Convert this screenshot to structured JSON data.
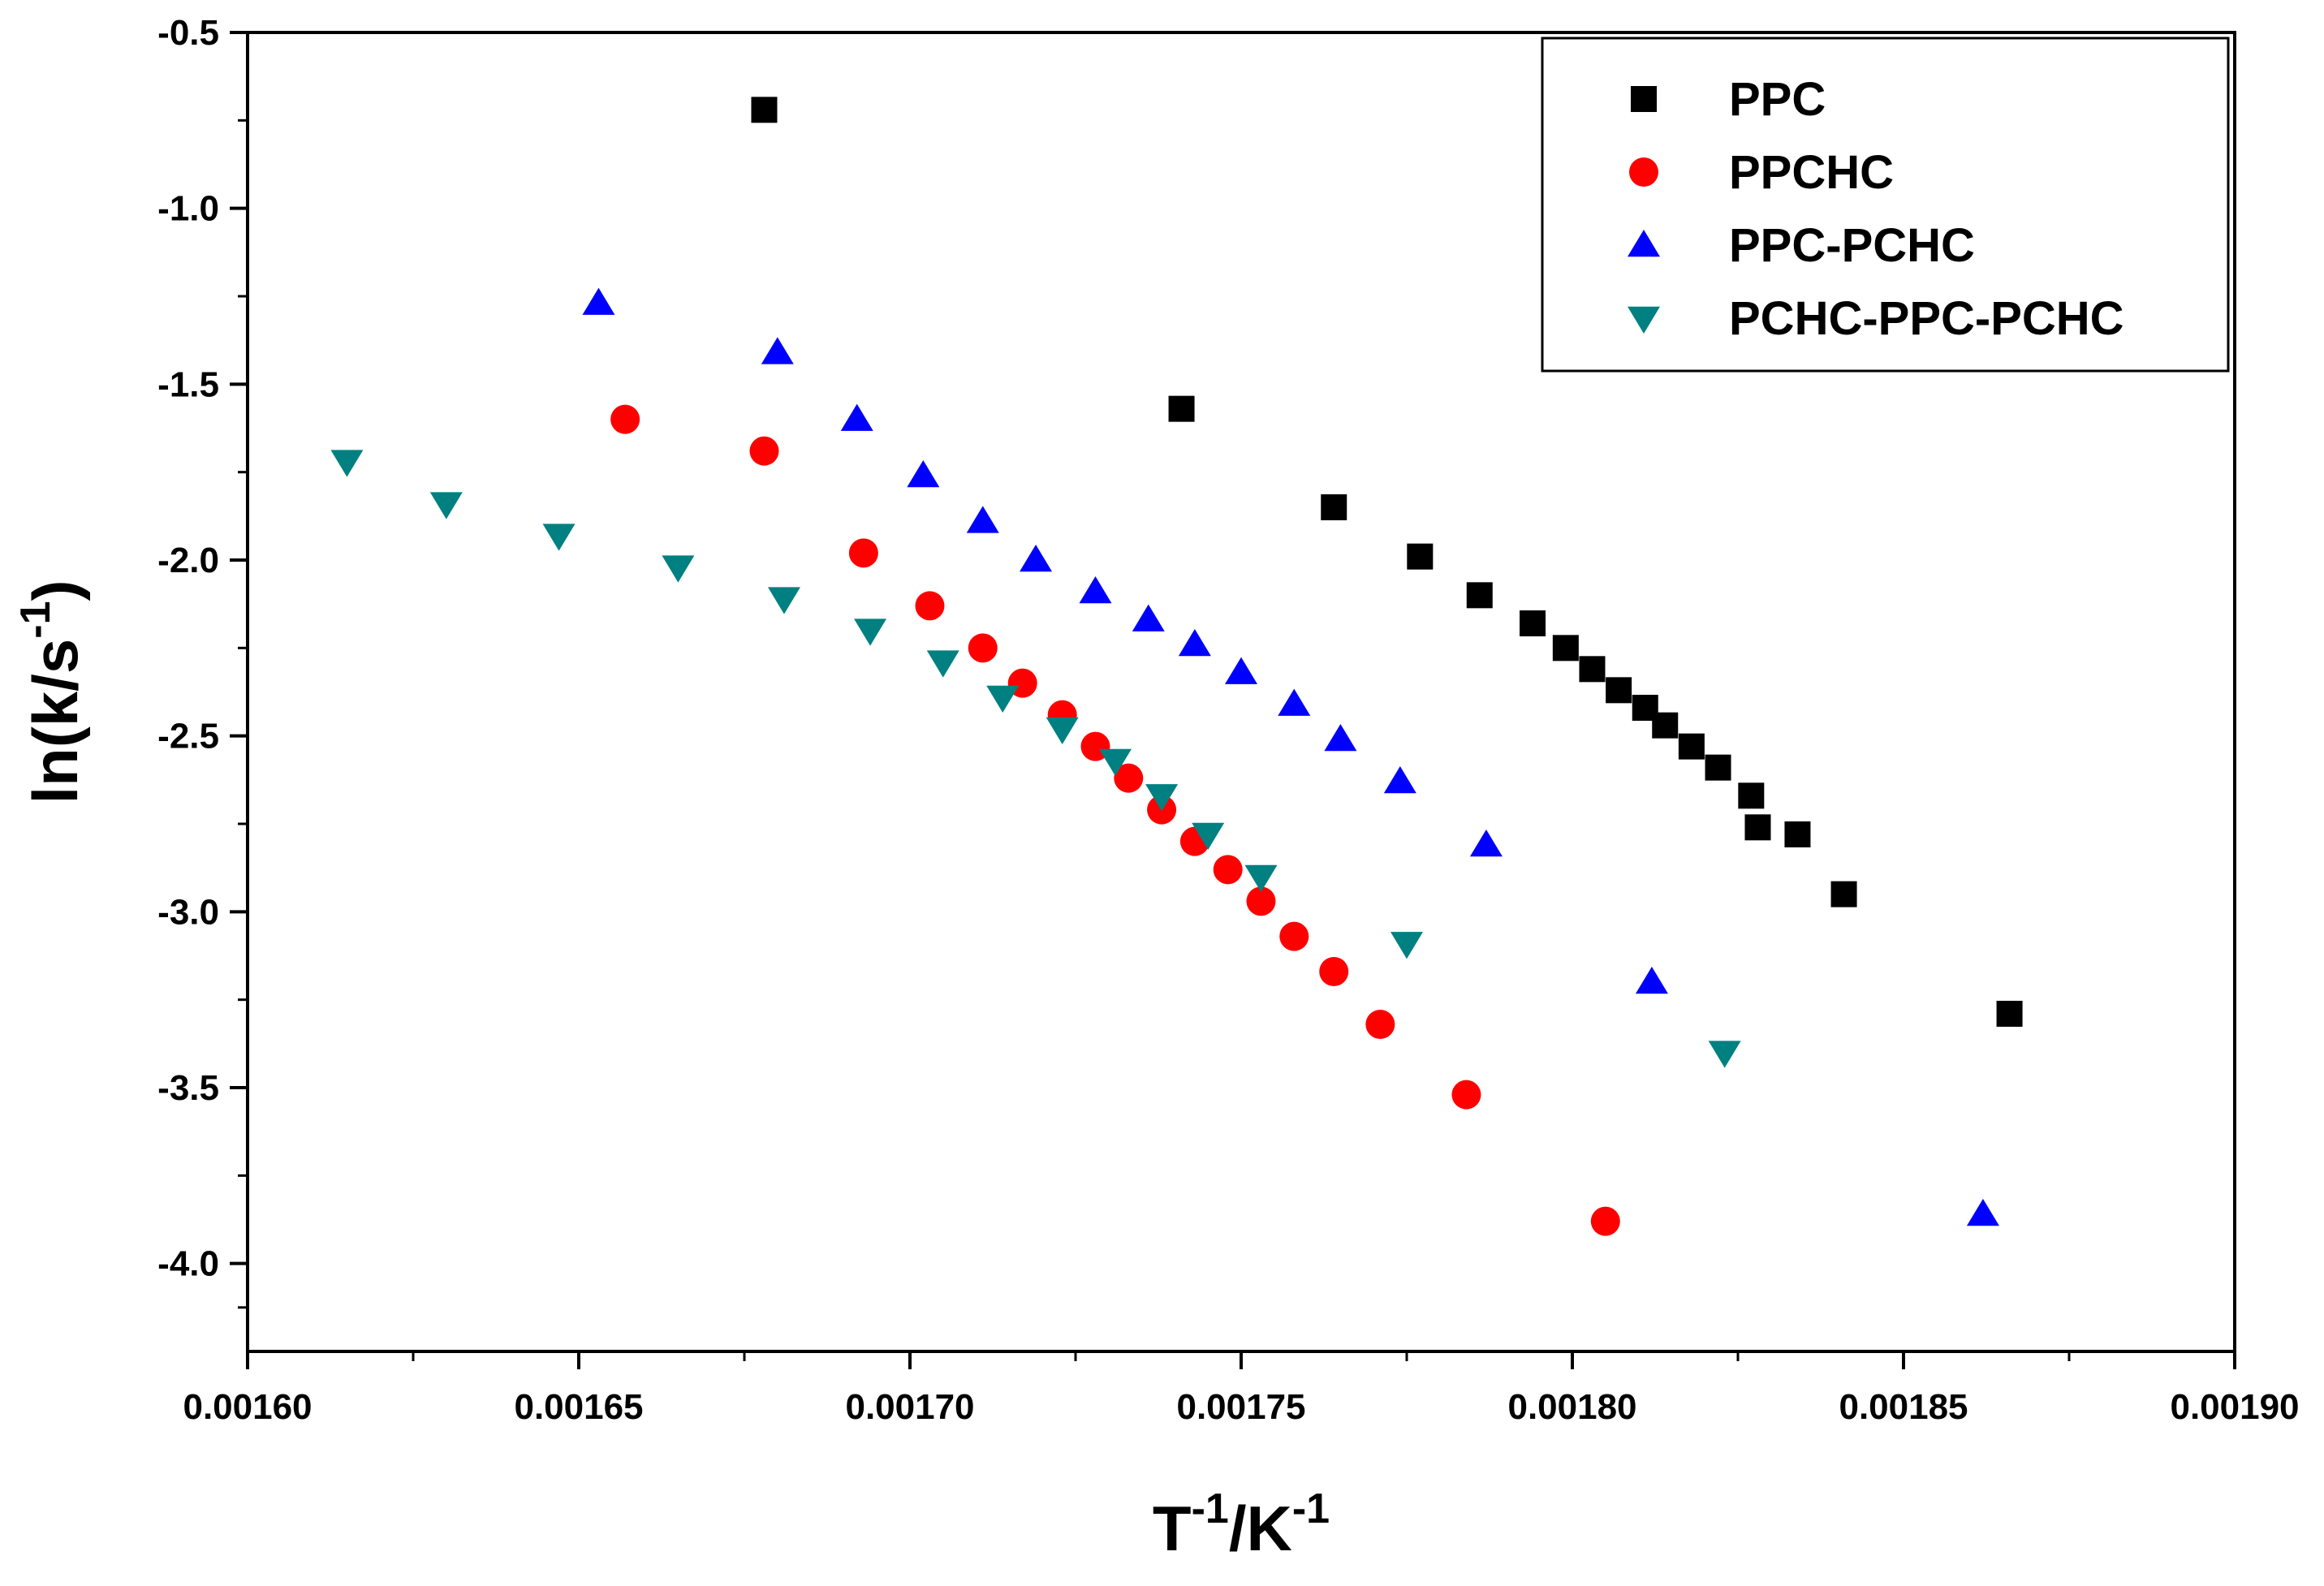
{
  "chart_data": {
    "type": "scatter",
    "title": "",
    "xlabel": {
      "base": "T",
      "sup1": "-1",
      "mid": "/K",
      "sup2": "-1"
    },
    "ylabel": {
      "base": "ln(k/s",
      "sup": "-1",
      "end": ")"
    },
    "xlim": [
      0.0016,
      0.0019
    ],
    "ylim": [
      -4.25,
      -0.5
    ],
    "x_ticks": [
      0.0016,
      0.00165,
      0.0017,
      0.00175,
      0.0018,
      0.00185,
      0.0019
    ],
    "x_tick_labels": [
      "0.00160",
      "0.00165",
      "0.00170",
      "0.00175",
      "0.00180",
      "0.00185",
      "0.00190"
    ],
    "y_ticks": [
      -0.5,
      -1.0,
      -1.5,
      -2.0,
      -2.5,
      -3.0,
      -3.5,
      -4.0
    ],
    "y_tick_labels": [
      "-0.5",
      "-1.0",
      "-1.5",
      "-2.0",
      "-2.5",
      "-3.0",
      "-3.5",
      "-4.0"
    ],
    "legend_position": "top-right",
    "series": [
      {
        "name": "PPC",
        "marker": "square",
        "color": "#000000",
        "points": [
          [
            0.001678,
            -0.72
          ],
          [
            0.001741,
            -1.57
          ],
          [
            0.001764,
            -1.85
          ],
          [
            0.001777,
            -1.99
          ],
          [
            0.001786,
            -2.1
          ],
          [
            0.001794,
            -2.18
          ],
          [
            0.001799,
            -2.25
          ],
          [
            0.001803,
            -2.31
          ],
          [
            0.001807,
            -2.37
          ],
          [
            0.001811,
            -2.42
          ],
          [
            0.001814,
            -2.47
          ],
          [
            0.001818,
            -2.53
          ],
          [
            0.001822,
            -2.59
          ],
          [
            0.001827,
            -2.67
          ],
          [
            0.001828,
            -2.76
          ],
          [
            0.001834,
            -2.78
          ],
          [
            0.001841,
            -2.95
          ],
          [
            0.001866,
            -3.29
          ]
        ]
      },
      {
        "name": "PPCHC",
        "marker": "circle",
        "color": "#ff0000",
        "points": [
          [
            0.001657,
            -1.6
          ],
          [
            0.001678,
            -1.69
          ],
          [
            0.001693,
            -1.98
          ],
          [
            0.001703,
            -2.13
          ],
          [
            0.001711,
            -2.25
          ],
          [
            0.001717,
            -2.35
          ],
          [
            0.001723,
            -2.44
          ],
          [
            0.001728,
            -2.53
          ],
          [
            0.001733,
            -2.62
          ],
          [
            0.001738,
            -2.71
          ],
          [
            0.001743,
            -2.8
          ],
          [
            0.001748,
            -2.88
          ],
          [
            0.001753,
            -2.97
          ],
          [
            0.001758,
            -3.07
          ],
          [
            0.001764,
            -3.17
          ],
          [
            0.001771,
            -3.32
          ],
          [
            0.001784,
            -3.52
          ],
          [
            0.001805,
            -3.88
          ]
        ]
      },
      {
        "name": "PPC-PCHC",
        "marker": "triangle-up",
        "color": "#0000ff",
        "points": [
          [
            0.001653,
            -1.27
          ],
          [
            0.00168,
            -1.41
          ],
          [
            0.001692,
            -1.6
          ],
          [
            0.001702,
            -1.76
          ],
          [
            0.001711,
            -1.89
          ],
          [
            0.001719,
            -2.0
          ],
          [
            0.001728,
            -2.09
          ],
          [
            0.001736,
            -2.17
          ],
          [
            0.001743,
            -2.24
          ],
          [
            0.00175,
            -2.32
          ],
          [
            0.001758,
            -2.41
          ],
          [
            0.001765,
            -2.51
          ],
          [
            0.001774,
            -2.63
          ],
          [
            0.001787,
            -2.81
          ],
          [
            0.001812,
            -3.2
          ],
          [
            0.001862,
            -3.86
          ]
        ]
      },
      {
        "name": "PCHC-PPC-PCHC",
        "marker": "triangle-down",
        "color": "#008080",
        "points": [
          [
            0.001615,
            -1.72
          ],
          [
            0.00163,
            -1.84
          ],
          [
            0.001647,
            -1.93
          ],
          [
            0.001665,
            -2.02
          ],
          [
            0.001681,
            -2.11
          ],
          [
            0.001694,
            -2.2
          ],
          [
            0.001705,
            -2.29
          ],
          [
            0.001714,
            -2.39
          ],
          [
            0.001723,
            -2.48
          ],
          [
            0.001731,
            -2.57
          ],
          [
            0.001738,
            -2.67
          ],
          [
            0.001745,
            -2.78
          ],
          [
            0.001753,
            -2.9
          ],
          [
            0.001775,
            -3.09
          ],
          [
            0.001823,
            -3.4
          ]
        ]
      }
    ]
  }
}
